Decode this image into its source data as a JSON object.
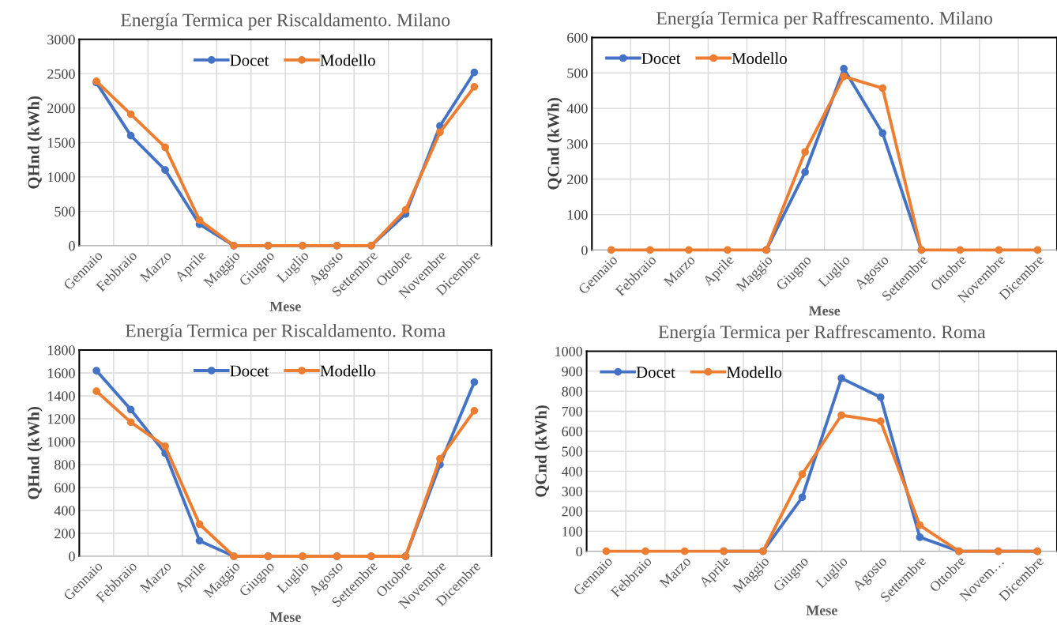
{
  "chart_data": [
    {
      "type": "line",
      "title": "Energía Termica per Riscaldamento. Milano",
      "xlabel": "Mese",
      "ylabel": "QHnd (kWh)",
      "categories": [
        "Gennaio",
        "Febbraio",
        "Marzo",
        "Aprile",
        "Maggio",
        "Giugno",
        "Luglio",
        "Agosto",
        "Settembre",
        "Ottobre",
        "Novembre",
        "Dicembre"
      ],
      "ylim": [
        0,
        3000
      ],
      "yticks": [
        0,
        500,
        1000,
        1500,
        2000,
        2500,
        3000
      ],
      "grid": true,
      "legend": "top",
      "marker": "circle",
      "series": [
        {
          "name": "Docet",
          "color": "#4472c4",
          "values": [
            2370,
            1600,
            1100,
            310,
            0,
            0,
            0,
            0,
            0,
            460,
            1740,
            2520
          ]
        },
        {
          "name": "Modello",
          "color": "#ed7d31",
          "values": [
            2390,
            1910,
            1430,
            370,
            0,
            0,
            0,
            0,
            0,
            520,
            1650,
            2310
          ]
        }
      ]
    },
    {
      "type": "line",
      "title": "Energía Termica per Raffrescamento. Milano",
      "xlabel": "Mese",
      "ylabel": "QCnd (kWh)",
      "categories": [
        "Gennaio",
        "Febbraio",
        "Marzo",
        "Aprile",
        "Maggio",
        "Giugno",
        "Luglio",
        "Agosto",
        "Settembre",
        "Ottobre",
        "Novembre",
        "Dicembre"
      ],
      "ylim": [
        0,
        600
      ],
      "yticks": [
        0,
        100,
        200,
        300,
        400,
        500,
        600
      ],
      "grid": true,
      "legend": "top left",
      "marker": "circle",
      "series": [
        {
          "name": "Docet",
          "color": "#4472c4",
          "values": [
            null,
            null,
            null,
            null,
            0,
            220,
            512,
            330,
            0,
            null,
            null,
            null
          ]
        },
        {
          "name": "Modello",
          "color": "#ed7d31",
          "values": [
            0,
            0,
            0,
            0,
            0,
            277,
            490,
            457,
            0,
            0,
            0,
            0
          ]
        }
      ]
    },
    {
      "type": "line",
      "title": "Energía Termica per Riscaldamento. Roma",
      "xlabel": "Mese",
      "ylabel": "QHnd (kWh)",
      "categories": [
        "Gennaio",
        "Febbraio",
        "Marzo",
        "Aprile",
        "Maggio",
        "Giugno",
        "Luglio",
        "Agosto",
        "Settembre",
        "Ottobre",
        "Novembre",
        "Dicembre"
      ],
      "ylim": [
        0,
        1800
      ],
      "yticks": [
        0,
        200,
        400,
        600,
        800,
        1000,
        1200,
        1400,
        1600,
        1800
      ],
      "grid": true,
      "legend": "top",
      "marker": "circle",
      "series": [
        {
          "name": "Docet",
          "color": "#4472c4",
          "values": [
            1620,
            1280,
            900,
            135,
            0,
            0,
            0,
            0,
            0,
            0,
            800,
            1520
          ]
        },
        {
          "name": "Modello",
          "color": "#ed7d31",
          "values": [
            1440,
            1170,
            960,
            280,
            0,
            0,
            0,
            0,
            0,
            0,
            850,
            1270
          ]
        }
      ]
    },
    {
      "type": "line",
      "title": "Energía Termica per Raffrescamento. Roma",
      "xlabel": "Mese",
      "ylabel": "QCnd (kWh)",
      "categories": [
        "Gennaio",
        "Febbraio",
        "Marzo",
        "Aprile",
        "Maggio",
        "Giugno",
        "Luglio",
        "Agosto",
        "Settembre",
        "Ottobre",
        "Novem…",
        "Dicembre"
      ],
      "ylim": [
        0,
        1000
      ],
      "yticks": [
        0,
        100,
        200,
        300,
        400,
        500,
        600,
        700,
        800,
        900,
        1000
      ],
      "grid": true,
      "legend": "top left",
      "marker": "circle",
      "series": [
        {
          "name": "Docet",
          "color": "#4472c4",
          "values": [
            null,
            null,
            null,
            0,
            0,
            270,
            865,
            770,
            70,
            0,
            0,
            0
          ]
        },
        {
          "name": "Modello",
          "color": "#ed7d31",
          "values": [
            0,
            0,
            0,
            0,
            0,
            385,
            680,
            650,
            130,
            0,
            0,
            0
          ]
        }
      ]
    }
  ]
}
